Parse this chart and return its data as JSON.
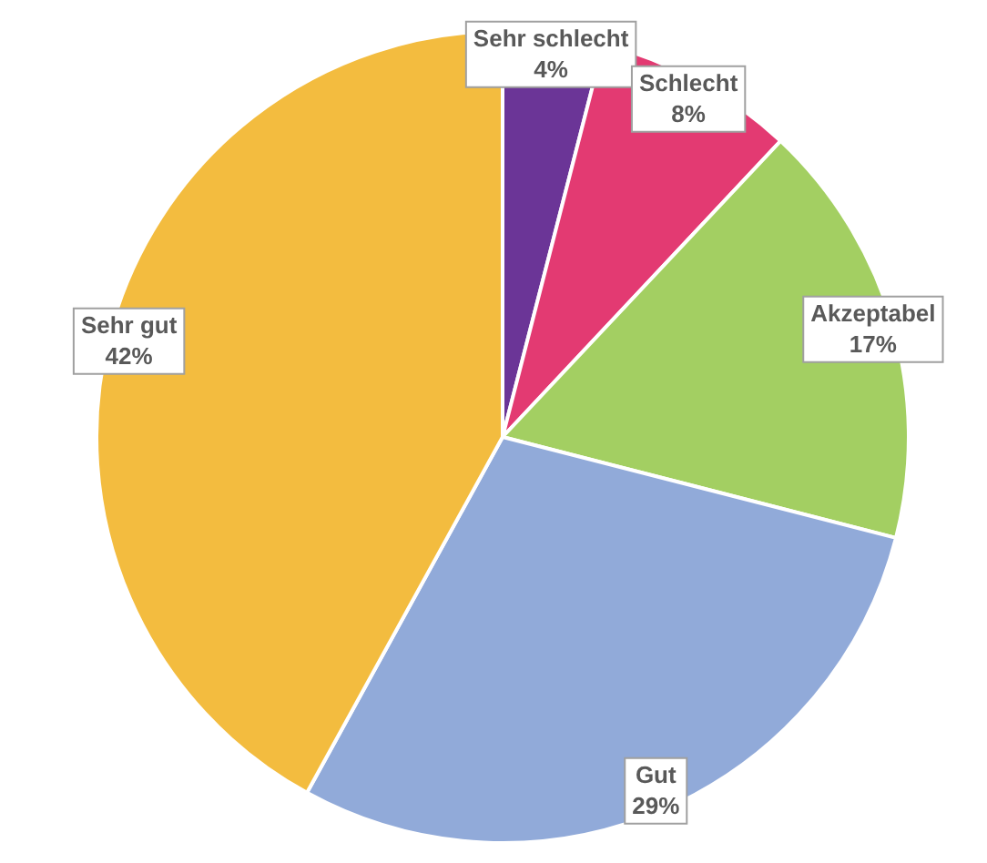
{
  "chart_data": {
    "type": "pie",
    "categories": [
      "Sehr schlecht",
      "Schlecht",
      "Akzeptabel",
      "Gut",
      "Sehr gut"
    ],
    "values": [
      4,
      8,
      17,
      29,
      42
    ],
    "colors": [
      "#6b3597",
      "#e33a72",
      "#a3cf62",
      "#91aad9",
      "#f3bc3f"
    ],
    "value_labels": [
      "4%",
      "8%",
      "17%",
      "29%",
      "42%"
    ],
    "legend": false
  }
}
